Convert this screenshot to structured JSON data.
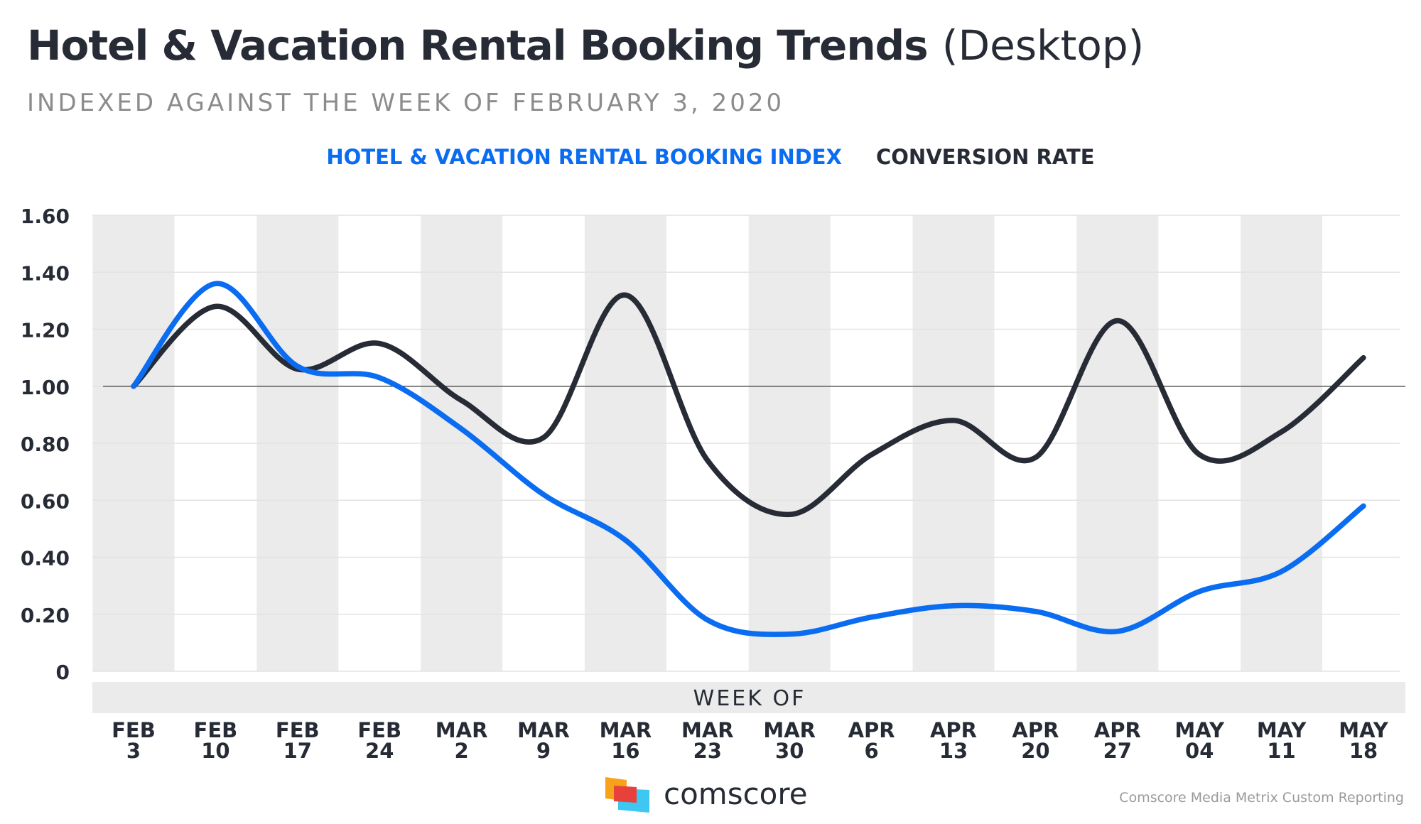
{
  "header": {
    "title_bold": "Hotel & Vacation Rental Booking Trends",
    "title_light": "(Desktop)",
    "subtitle": "INDEXED AGAINST THE WEEK OF FEBRUARY 3, 2020"
  },
  "legend": {
    "booking_index": "HOTEL & VACATION RENTAL BOOKING INDEX",
    "conversion_rate": "CONVERSION RATE"
  },
  "chart_data": {
    "type": "line",
    "x_axis_title": "WEEK OF",
    "categories": [
      [
        "FEB",
        "3"
      ],
      [
        "FEB",
        "10"
      ],
      [
        "FEB",
        "17"
      ],
      [
        "FEB",
        "24"
      ],
      [
        "MAR",
        "2"
      ],
      [
        "MAR",
        "9"
      ],
      [
        "MAR",
        "16"
      ],
      [
        "MAR",
        "23"
      ],
      [
        "MAR",
        "30"
      ],
      [
        "APR",
        "6"
      ],
      [
        "APR",
        "13"
      ],
      [
        "APR",
        "20"
      ],
      [
        "APR",
        "27"
      ],
      [
        "MAY",
        "04"
      ],
      [
        "MAY",
        "11"
      ],
      [
        "MAY",
        "18"
      ]
    ],
    "ylim": [
      0,
      1.6
    ],
    "yticks": [
      {
        "value": 1.6,
        "label": "1.60"
      },
      {
        "value": 1.4,
        "label": "1.40"
      },
      {
        "value": 1.2,
        "label": "1.20"
      },
      {
        "value": 1.0,
        "label": "1.00"
      },
      {
        "value": 0.8,
        "label": "0.80"
      },
      {
        "value": 0.6,
        "label": "0.60"
      },
      {
        "value": 0.4,
        "label": "0.40"
      },
      {
        "value": 0.2,
        "label": "0.20"
      },
      {
        "value": 0.0,
        "label": "0"
      }
    ],
    "reference_line": 1.0,
    "alternating_column_shading": true,
    "series": [
      {
        "name": "HOTEL & VACATION RENTAL BOOKING INDEX",
        "color": "#0a6cf0",
        "values": [
          1.0,
          1.36,
          1.07,
          1.03,
          0.85,
          0.62,
          0.46,
          0.18,
          0.13,
          0.19,
          0.23,
          0.21,
          0.14,
          0.28,
          0.35,
          0.58
        ]
      },
      {
        "name": "CONVERSION RATE",
        "color": "#262b35",
        "values": [
          1.0,
          1.28,
          1.06,
          1.15,
          0.95,
          0.82,
          1.32,
          0.74,
          0.55,
          0.76,
          0.88,
          0.75,
          1.23,
          0.76,
          0.84,
          1.1
        ]
      }
    ]
  },
  "footer": {
    "logo_text": "comscore",
    "source": "Comscore Media Metrix Custom Reporting"
  },
  "colors": {
    "accent_blue": "#0a6cf0",
    "dark": "#262b35",
    "band": "#ebebeb",
    "axis_strip": "#ebebeb",
    "logo_orange": "#f7a21b",
    "logo_red": "#e8413c",
    "logo_cyan": "#3ec7f2"
  }
}
